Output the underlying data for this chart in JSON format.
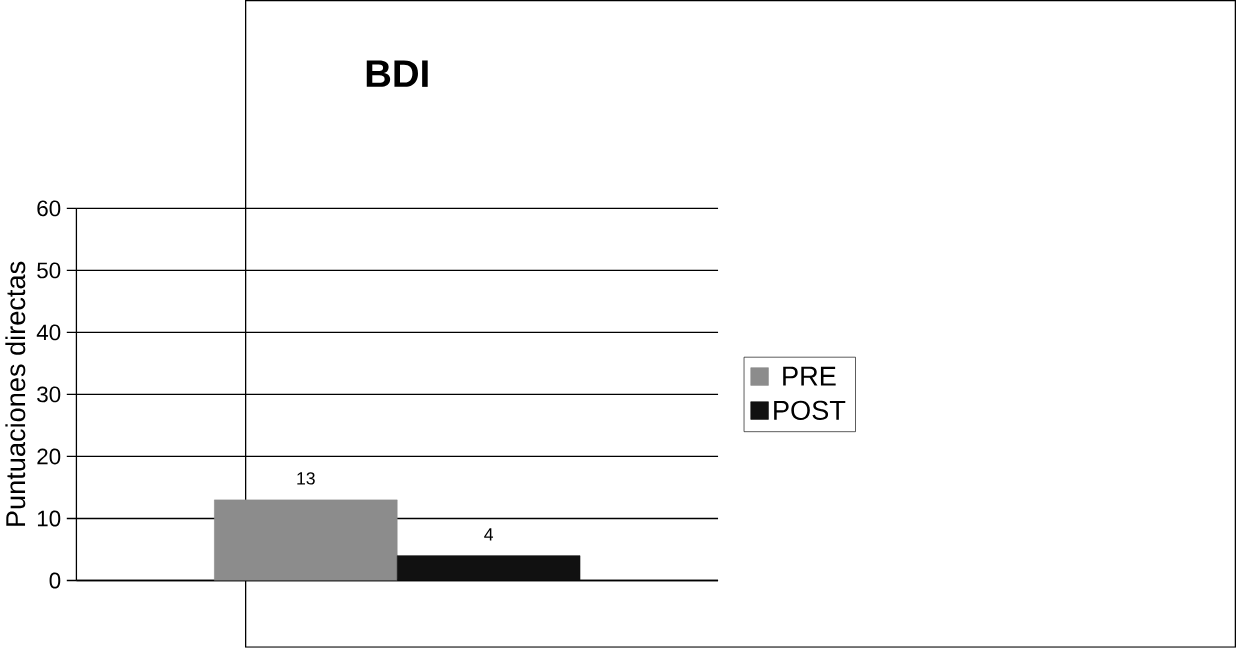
{
  "chart_data": {
    "type": "bar",
    "title": "BDI",
    "ylabel": "Puntuaciones directas",
    "categories": [
      null
    ],
    "series": [
      {
        "name": "PRE",
        "color": "#8c8c8c",
        "values": [
          13
        ]
      },
      {
        "name": "POST",
        "color": "#111111",
        "values": [
          4
        ]
      }
    ],
    "ylim": [
      0,
      60
    ],
    "yticks": [
      0,
      10,
      20,
      30,
      40,
      50,
      60
    ],
    "grid": "y",
    "legend": "right",
    "data_labels": true
  }
}
